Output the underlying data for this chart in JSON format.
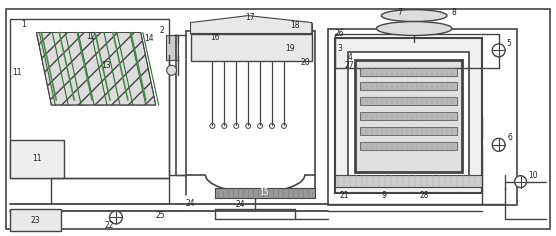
{
  "bg_color": "#ffffff",
  "lc": "#444444",
  "gray1": "#cccccc",
  "gray2": "#aaaaaa",
  "gray3": "#888888",
  "gray4": "#666666",
  "green1": "#4a7a4a",
  "green2": "#6aaa6a"
}
